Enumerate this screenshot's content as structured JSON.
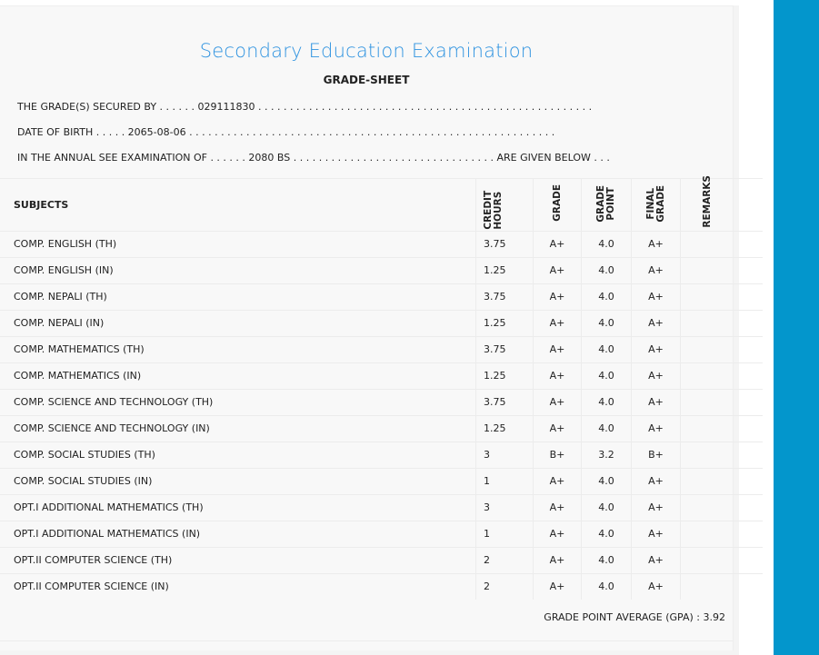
{
  "header": {
    "title": "Secondary Education Examination",
    "subtitle": "GRADE-SHEET"
  },
  "info": {
    "secured_by": "THE GRADE(S) SECURED BY . . . . . . 029111830 . . . . . . . . . . . . . . . . . . . . . . . . . . . . . . . . . . . . . . . . . . . . . . . . . . . . .",
    "dob": "DATE OF BIRTH . . . . . 2065-08-06 . . . . . . . . . . . . . . . . . . . . . . . . . . . . . . . . . . . . . . . . . . . . . . . . . . . . . . . . . .",
    "exam": "IN THE ANNUAL SEE EXAMINATION OF . . . . . . 2080 BS . . . . . . . . . . . . . . . . . . . . . . . . . . . . . . . . ARE GIVEN BELOW . . ."
  },
  "table": {
    "headers": [
      "SUBJECTS",
      "CREDIT HOURS",
      "GRADE",
      "GRADE POINT",
      "FINAL GRADE",
      "REMARKS"
    ],
    "rows": [
      [
        "COMP. ENGLISH (TH)",
        "3.75",
        "A+",
        "4.0",
        "A+",
        ""
      ],
      [
        "COMP. ENGLISH (IN)",
        "1.25",
        "A+",
        "4.0",
        "A+",
        ""
      ],
      [
        "COMP. NEPALI (TH)",
        "3.75",
        "A+",
        "4.0",
        "A+",
        ""
      ],
      [
        "COMP. NEPALI (IN)",
        "1.25",
        "A+",
        "4.0",
        "A+",
        ""
      ],
      [
        "COMP. MATHEMATICS (TH)",
        "3.75",
        "A+",
        "4.0",
        "A+",
        ""
      ],
      [
        "COMP. MATHEMATICS (IN)",
        "1.25",
        "A+",
        "4.0",
        "A+",
        ""
      ],
      [
        "COMP. SCIENCE AND TECHNOLOGY (TH)",
        "3.75",
        "A+",
        "4.0",
        "A+",
        ""
      ],
      [
        "COMP. SCIENCE AND TECHNOLOGY (IN)",
        "1.25",
        "A+",
        "4.0",
        "A+",
        ""
      ],
      [
        "COMP. SOCIAL STUDIES (TH)",
        "3",
        "B+",
        "3.2",
        "B+",
        ""
      ],
      [
        "COMP. SOCIAL STUDIES (IN)",
        "1",
        "A+",
        "4.0",
        "A+",
        ""
      ],
      [
        "OPT.I ADDITIONAL MATHEMATICS (TH)",
        "3",
        "A+",
        "4.0",
        "A+",
        ""
      ],
      [
        "OPT.I ADDITIONAL MATHEMATICS (IN)",
        "1",
        "A+",
        "4.0",
        "A+",
        ""
      ],
      [
        "OPT.II COMPUTER SCIENCE (TH)",
        "2",
        "A+",
        "4.0",
        "A+",
        ""
      ],
      [
        "OPT.II COMPUTER SCIENCE (IN)",
        "2",
        "A+",
        "4.0",
        "A+",
        ""
      ]
    ]
  },
  "gpa": "GRADE POINT AVERAGE (GPA) : 3.92",
  "colors": {
    "title": "#2f93e0",
    "sidebar": "#0396cc"
  }
}
